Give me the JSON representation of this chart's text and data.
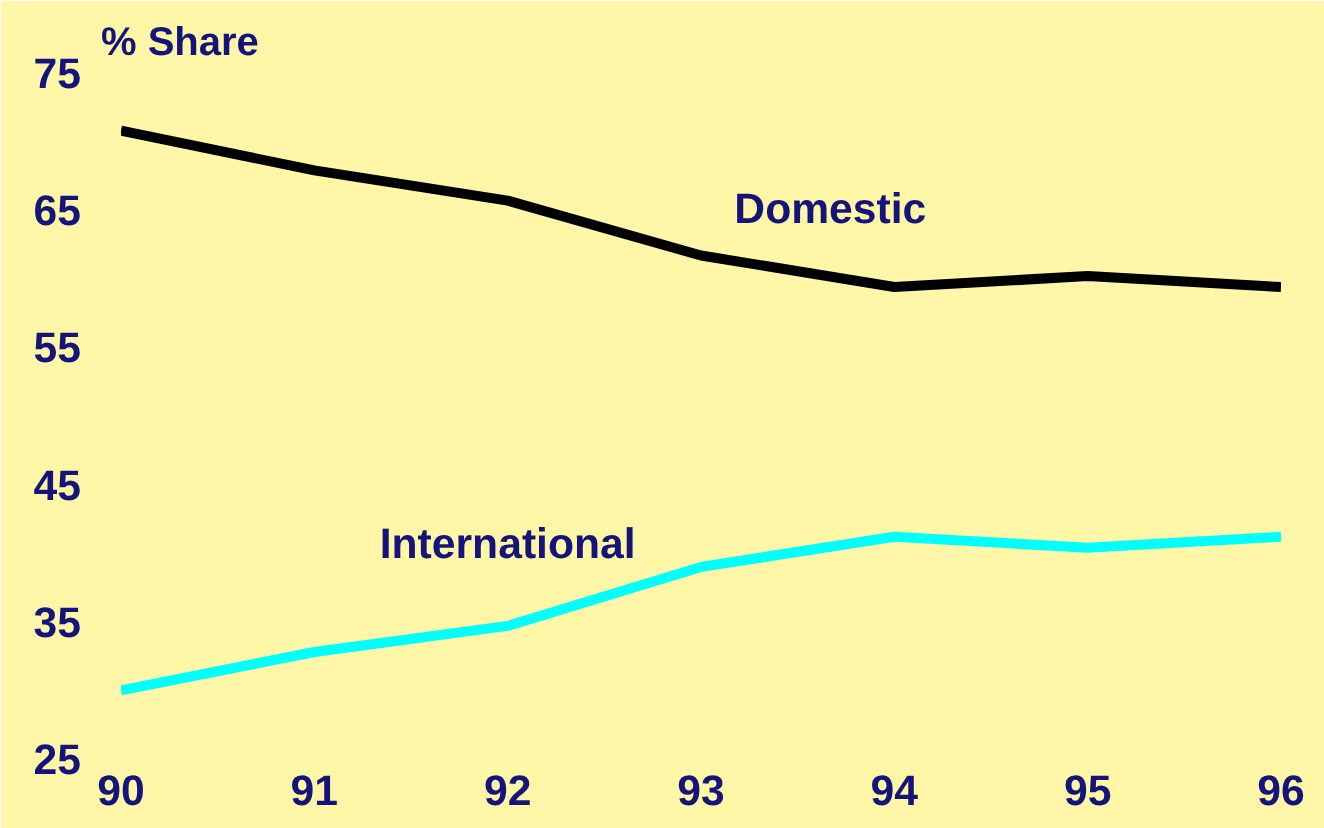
{
  "chart_data": {
    "type": "line",
    "ylabel": "% Share",
    "x": [
      90,
      91,
      92,
      93,
      94,
      95,
      96
    ],
    "series": [
      {
        "name": "Domestic",
        "color": "#000000",
        "values": [
          70.8,
          67.9,
          65.7,
          61.7,
          59.4,
          60.2,
          59.4
        ]
      },
      {
        "name": "International",
        "color": "#00ffff",
        "values": [
          30.0,
          32.8,
          34.7,
          39.0,
          41.2,
          40.4,
          41.2
        ]
      }
    ],
    "xlim": [
      90,
      96
    ],
    "ylim": [
      25,
      75
    ],
    "xticks": [
      90,
      91,
      92,
      93,
      94,
      95,
      96
    ],
    "yticks": [
      25,
      35,
      45,
      55,
      65,
      75
    ],
    "grid": false,
    "marker": "none",
    "line_style": "solid"
  }
}
